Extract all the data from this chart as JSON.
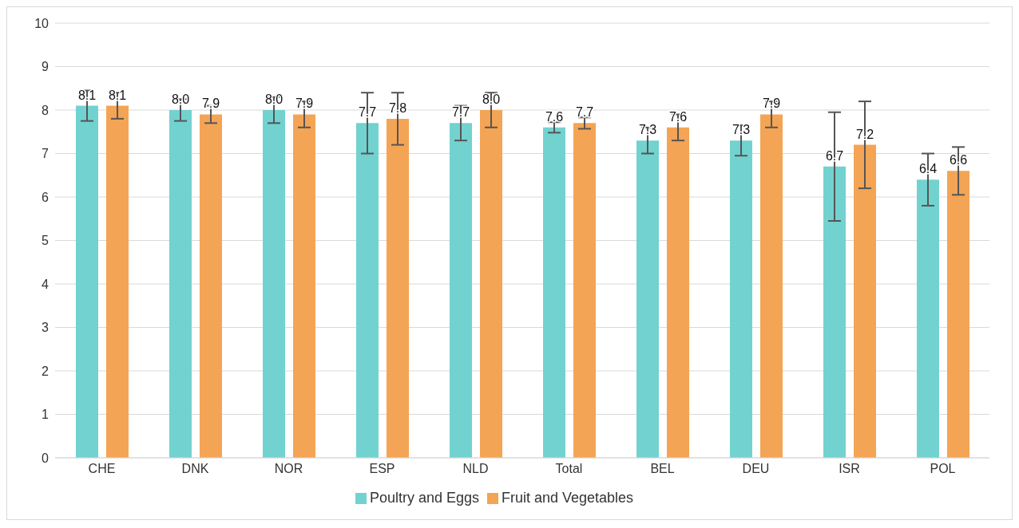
{
  "chart_data": {
    "type": "bar",
    "categories": [
      "CHE",
      "DNK",
      "NOR",
      "ESP",
      "NLD",
      "Total",
      "BEL",
      "DEU",
      "ISR",
      "POL"
    ],
    "series": [
      {
        "name": "Poultry and Eggs",
        "color": "#72d2d0",
        "values": [
          8.1,
          8.0,
          8.0,
          7.7,
          7.7,
          7.6,
          7.3,
          7.3,
          6.7,
          6.4
        ],
        "value_labels": [
          "8.1",
          "8.0",
          "8.0",
          "7.7",
          "7.7",
          "7.6",
          "7.3",
          "7.3",
          "6.7",
          "6.4"
        ],
        "errors": [
          0.35,
          0.25,
          0.3,
          0.7,
          0.4,
          0.12,
          0.3,
          0.35,
          1.25,
          0.6
        ]
      },
      {
        "name": "Fruit and Vegetables",
        "color": "#f4a455",
        "values": [
          8.1,
          7.9,
          7.9,
          7.8,
          8.0,
          7.7,
          7.6,
          7.9,
          7.2,
          6.6
        ],
        "value_labels": [
          "8.1",
          "7.9",
          "7.9",
          "7.8",
          "8.0",
          "7.7",
          "7.6",
          "7.9",
          "7.2",
          "6.6"
        ],
        "errors": [
          0.3,
          0.2,
          0.3,
          0.6,
          0.4,
          0.13,
          0.3,
          0.3,
          1.0,
          0.55
        ]
      }
    ],
    "ylim": [
      0,
      10
    ],
    "yticks": [
      0,
      1,
      2,
      3,
      4,
      5,
      6,
      7,
      8,
      9,
      10
    ],
    "grid": "y",
    "legend": "bottom"
  }
}
